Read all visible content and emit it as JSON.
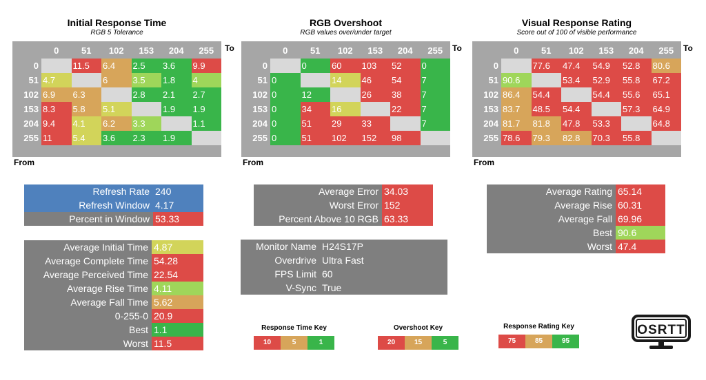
{
  "colors": {
    "red": "#dd4b47",
    "orange": "#d7a55a",
    "yellow": "#d2d45a",
    "lightgreen": "#9fd65a",
    "green": "#39b54a",
    "empty": "#d9d9d9",
    "grid": "#a6a6a6",
    "panel": "#7f7f7f",
    "blue": "#4f81bd"
  },
  "labels": {
    "to": "To",
    "from": "From"
  },
  "col_headers": [
    "0",
    "51",
    "102",
    "153",
    "204",
    "255"
  ],
  "row_headers": [
    "0",
    "51",
    "102",
    "153",
    "204",
    "255"
  ],
  "heatmaps": [
    {
      "title": "Initial Response Time",
      "subtitle": "RGB 5 Tolerance",
      "cells": [
        [
          "",
          "11.5",
          "6.4",
          "2.5",
          "3.6",
          "9.9"
        ],
        [
          "4.7",
          "",
          "6",
          "3.5",
          "1.8",
          "4"
        ],
        [
          "6.9",
          "6.3",
          "",
          "2.8",
          "2.1",
          "2.7"
        ],
        [
          "8.3",
          "5.8",
          "5.1",
          "",
          "1.9",
          "1.9"
        ],
        [
          "9.4",
          "4.1",
          "6.2",
          "3.3",
          "",
          "1.1"
        ],
        [
          "11",
          "5.4",
          "3.6",
          "2.3",
          "1.9",
          ""
        ]
      ],
      "colors": [
        [
          "empty",
          "red",
          "orange",
          "green",
          "green",
          "red"
        ],
        [
          "yellow",
          "empty",
          "orange",
          "lightgreen",
          "green",
          "lightgreen"
        ],
        [
          "orange",
          "orange",
          "empty",
          "green",
          "green",
          "green"
        ],
        [
          "red",
          "orange",
          "yellow",
          "empty",
          "green",
          "green"
        ],
        [
          "red",
          "yellow",
          "orange",
          "lightgreen",
          "empty",
          "green"
        ],
        [
          "red",
          "yellow",
          "green",
          "green",
          "green",
          "empty"
        ]
      ]
    },
    {
      "title": "RGB Overshoot",
      "subtitle": "RGB values over/under target",
      "cells": [
        [
          "",
          "0",
          "60",
          "103",
          "52",
          "0"
        ],
        [
          "0",
          "",
          "14",
          "46",
          "54",
          "7"
        ],
        [
          "0",
          "12",
          "",
          "26",
          "38",
          "7"
        ],
        [
          "0",
          "34",
          "16",
          "",
          "22",
          "7"
        ],
        [
          "0",
          "51",
          "29",
          "33",
          "",
          "7"
        ],
        [
          "0",
          "51",
          "102",
          "152",
          "98",
          ""
        ]
      ],
      "colors": [
        [
          "empty",
          "green",
          "red",
          "red",
          "red",
          "green"
        ],
        [
          "green",
          "empty",
          "yellow",
          "red",
          "red",
          "green"
        ],
        [
          "green",
          "green",
          "empty",
          "red",
          "red",
          "green"
        ],
        [
          "green",
          "red",
          "yellow",
          "empty",
          "red",
          "green"
        ],
        [
          "green",
          "red",
          "red",
          "red",
          "empty",
          "green"
        ],
        [
          "green",
          "red",
          "red",
          "red",
          "red",
          "empty"
        ]
      ]
    },
    {
      "title": "Visual Response Rating",
      "subtitle": "Score out of 100 of visible performance",
      "cells": [
        [
          "",
          "77.6",
          "47.4",
          "54.9",
          "52.8",
          "80.6"
        ],
        [
          "90.6",
          "",
          "53.4",
          "52.9",
          "55.8",
          "67.2"
        ],
        [
          "86.4",
          "54.4",
          "",
          "54.4",
          "55.6",
          "65.1"
        ],
        [
          "83.7",
          "48.5",
          "54.4",
          "",
          "57.3",
          "64.9"
        ],
        [
          "81.7",
          "81.8",
          "47.8",
          "53.3",
          "",
          "64.8"
        ],
        [
          "78.6",
          "79.3",
          "82.8",
          "70.3",
          "55.8",
          ""
        ]
      ],
      "colors": [
        [
          "empty",
          "red",
          "red",
          "red",
          "red",
          "orange"
        ],
        [
          "lightgreen",
          "empty",
          "red",
          "red",
          "red",
          "red"
        ],
        [
          "orange",
          "red",
          "empty",
          "red",
          "red",
          "red"
        ],
        [
          "orange",
          "red",
          "red",
          "empty",
          "red",
          "red"
        ],
        [
          "orange",
          "orange",
          "red",
          "red",
          "empty",
          "red"
        ],
        [
          "red",
          "orange",
          "orange",
          "red",
          "red",
          "empty"
        ]
      ]
    }
  ],
  "refresh_panel": [
    {
      "label": "Refresh Rate",
      "value": "240",
      "label_color": "blue",
      "value_color": "blue"
    },
    {
      "label": "Refresh Window",
      "value": "4.17",
      "label_color": "blue",
      "value_color": "blue"
    },
    {
      "label": "Percent in Window",
      "value": "53.33",
      "label_color": "panel",
      "value_color": "red"
    }
  ],
  "stats_panel": [
    {
      "label": "Average Initial Time",
      "value": "4.87",
      "value_color": "yellow"
    },
    {
      "label": "Average Complete Time",
      "value": "54.28",
      "value_color": "red"
    },
    {
      "label": "Average Perceived Time",
      "value": "22.54",
      "value_color": "red"
    },
    {
      "label": "Average Rise Time",
      "value": "4.11",
      "value_color": "lightgreen"
    },
    {
      "label": "Average Fall Time",
      "value": "5.62",
      "value_color": "orange"
    },
    {
      "label": "0-255-0",
      "value": "20.9",
      "value_color": "red"
    },
    {
      "label": "Best",
      "value": "1.1",
      "value_color": "green"
    },
    {
      "label": "Worst",
      "value": "11.5",
      "value_color": "red"
    }
  ],
  "error_panel": [
    {
      "label": "Average Error",
      "value": "34.03",
      "value_color": "red"
    },
    {
      "label": "Worst Error",
      "value": "152",
      "value_color": "red"
    },
    {
      "label": "Percent Above 10 RGB",
      "value": "63.33",
      "value_color": "red"
    }
  ],
  "monitor_panel": [
    {
      "label": "Monitor Name",
      "value": "H24S17P"
    },
    {
      "label": "Overdrive",
      "value": "Ultra Fast"
    },
    {
      "label": "FPS Limit",
      "value": "60"
    },
    {
      "label": "V-Sync",
      "value": "True"
    }
  ],
  "rating_panel": [
    {
      "label": "Average Rating",
      "value": "65.14",
      "value_color": "red"
    },
    {
      "label": "Average Rise",
      "value": "60.31",
      "value_color": "red"
    },
    {
      "label": "Average Fall",
      "value": "69.96",
      "value_color": "red"
    },
    {
      "label": "Best",
      "value": "90.6",
      "value_color": "lightgreen"
    },
    {
      "label": "Worst",
      "value": "47.4",
      "value_color": "red"
    }
  ],
  "keys": [
    {
      "title": "Response Time Key",
      "items": [
        {
          "text": "10",
          "color": "red"
        },
        {
          "text": "5",
          "color": "orange"
        },
        {
          "text": "1",
          "color": "green"
        }
      ]
    },
    {
      "title": "Overshoot Key",
      "items": [
        {
          "text": "20",
          "color": "red"
        },
        {
          "text": "15",
          "color": "orange"
        },
        {
          "text": "5",
          "color": "green"
        }
      ]
    },
    {
      "title": "Response Rating Key",
      "items": [
        {
          "text": "75",
          "color": "red"
        },
        {
          "text": "85",
          "color": "orange"
        },
        {
          "text": "95",
          "color": "green"
        }
      ]
    }
  ],
  "logo": {
    "text": "OSRTT",
    "icon": "monitor-logo-icon"
  }
}
